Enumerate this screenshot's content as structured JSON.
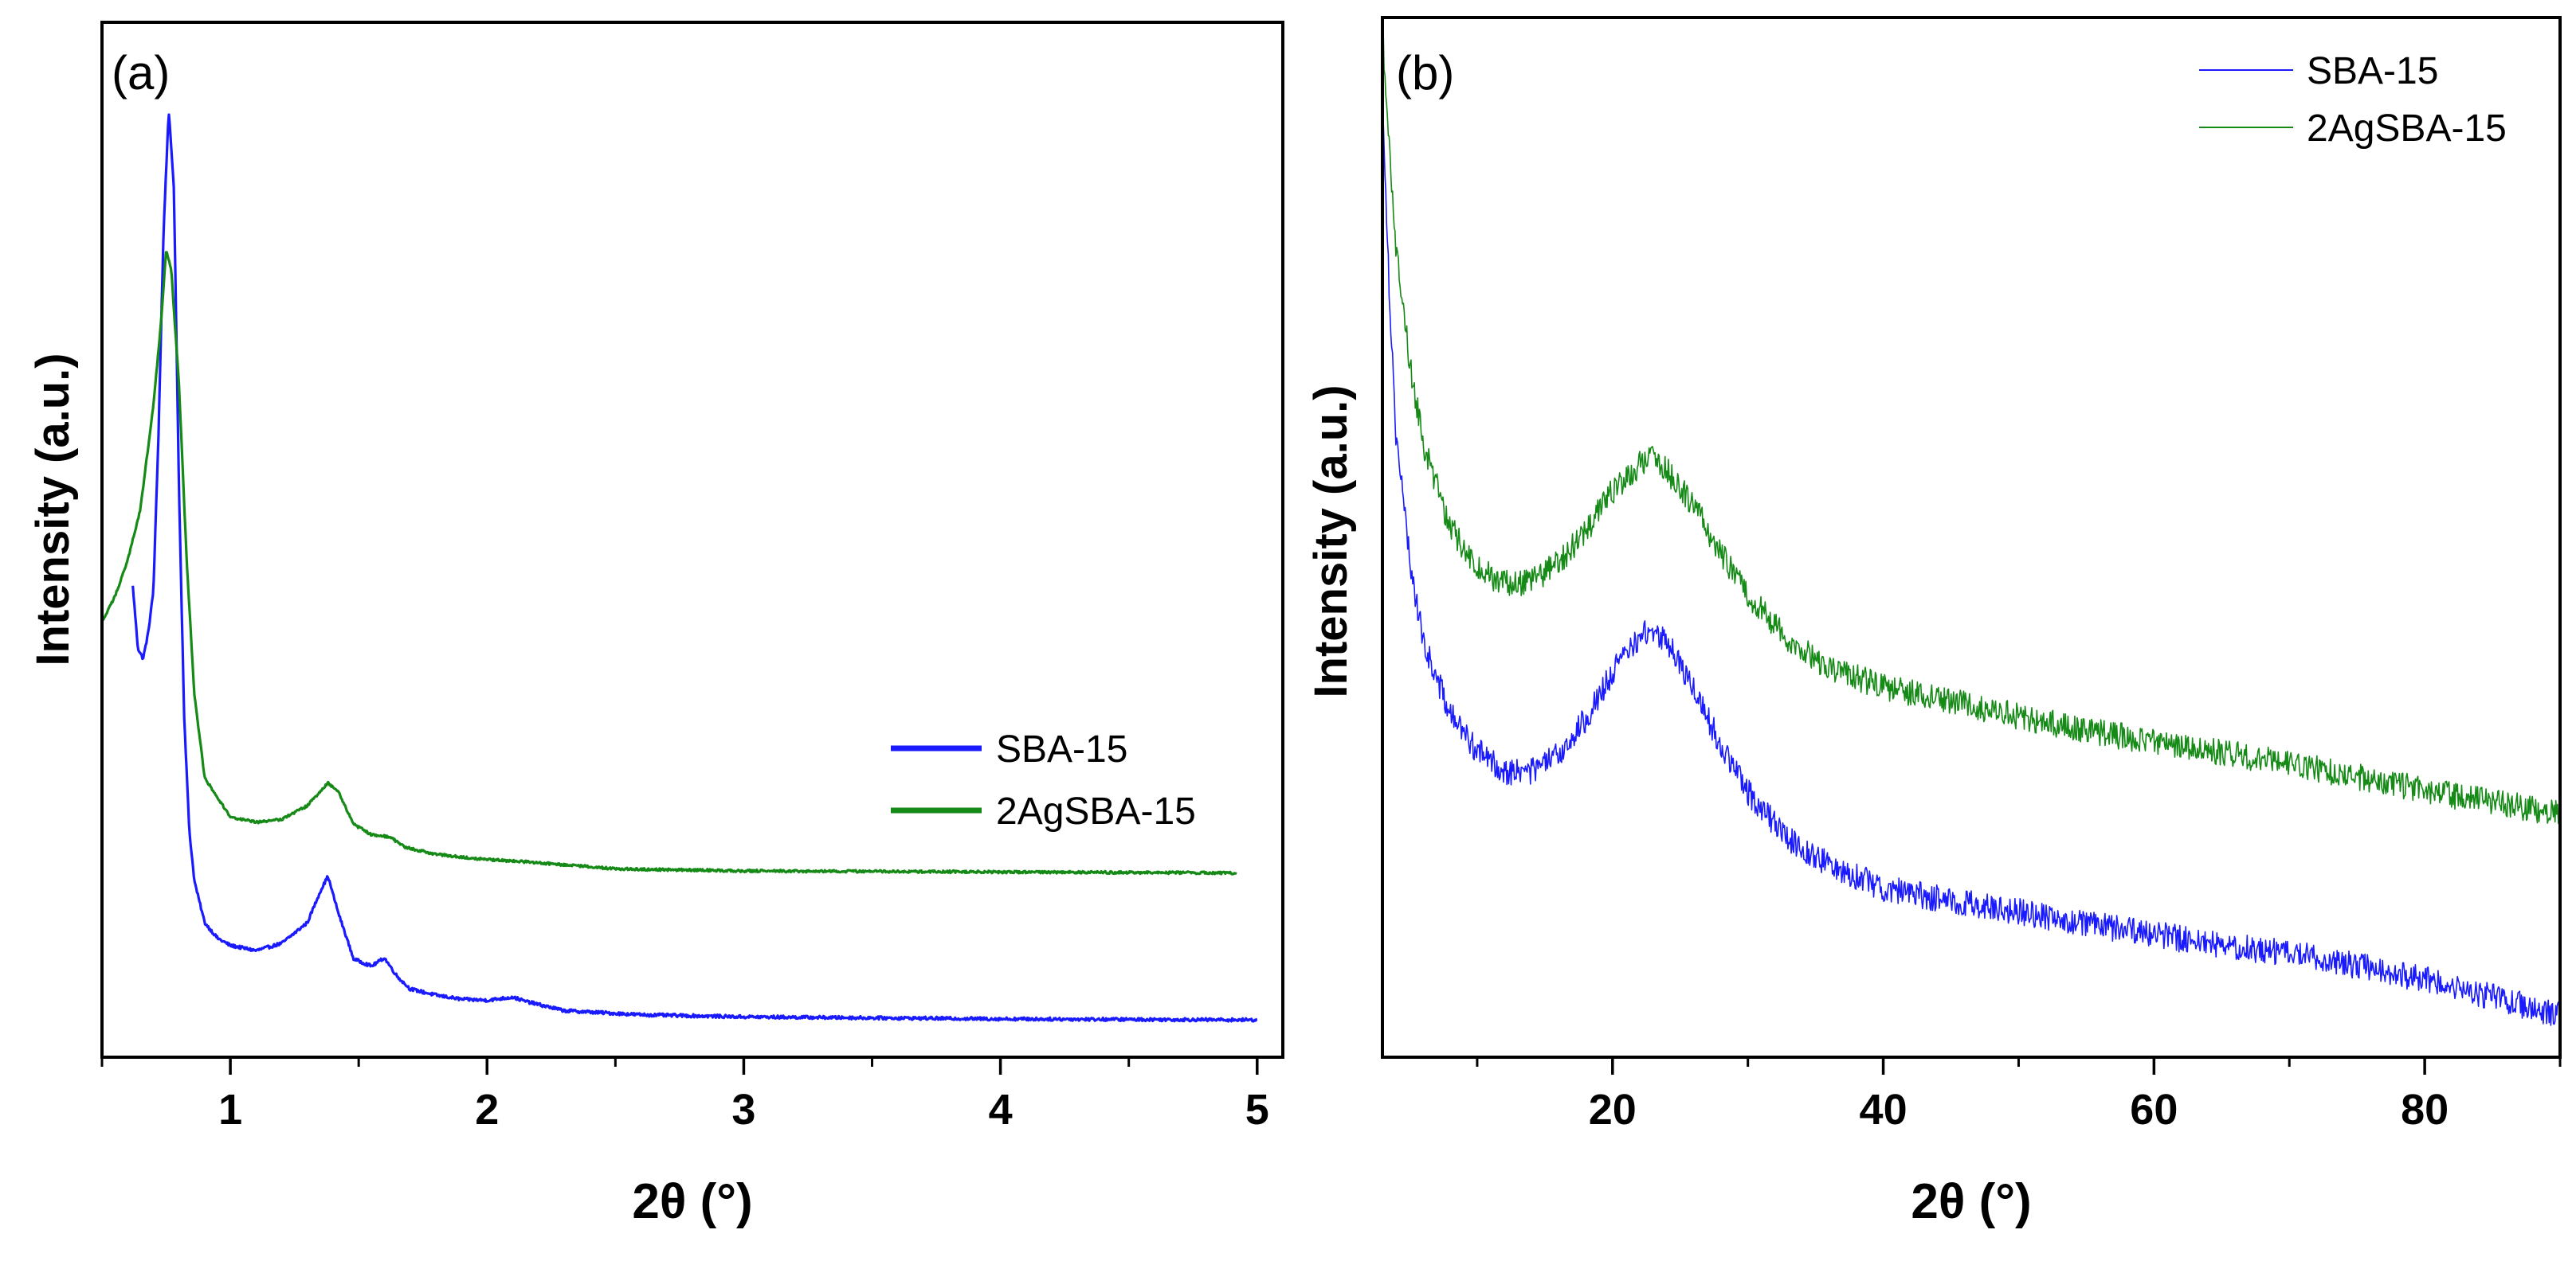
{
  "colors": {
    "sba15": "#1a1aff",
    "ag": "#168a16"
  },
  "chart_data": [
    {
      "type": "line",
      "panel_label": "(a)",
      "xlabel": "2θ (°)",
      "ylabel": "Intensity (a.u.)",
      "xlim": [
        0.5,
        5.1
      ],
      "ylim": [
        0,
        100
      ],
      "xticks": [
        1,
        2,
        3,
        4,
        5
      ],
      "x_minor_step": 0.5,
      "yticks": [],
      "legend_position": "center-right",
      "legend_lw": 7,
      "series": [
        {
          "name": "SBA-15",
          "color": "#1a1aff",
          "noise": 0.15,
          "points": [
            [
              0.62,
              45.5
            ],
            [
              0.64,
              39.5
            ],
            [
              0.66,
              38.5
            ],
            [
              0.68,
              41
            ],
            [
              0.7,
              45
            ],
            [
              0.72,
              60
            ],
            [
              0.74,
              80
            ],
            [
              0.76,
              91.5
            ],
            [
              0.78,
              84
            ],
            [
              0.8,
              55
            ],
            [
              0.82,
              33
            ],
            [
              0.84,
              22
            ],
            [
              0.86,
              17
            ],
            [
              0.9,
              13
            ],
            [
              0.95,
              11.5
            ],
            [
              1.0,
              10.8
            ],
            [
              1.1,
              10.3
            ],
            [
              1.2,
              11
            ],
            [
              1.3,
              13
            ],
            [
              1.35,
              16
            ],
            [
              1.38,
              17.5
            ],
            [
              1.42,
              14
            ],
            [
              1.48,
              9.5
            ],
            [
              1.55,
              8.8
            ],
            [
              1.6,
              9.6
            ],
            [
              1.65,
              7.8
            ],
            [
              1.7,
              6.6
            ],
            [
              1.8,
              6.0
            ],
            [
              1.9,
              5.6
            ],
            [
              2.0,
              5.5
            ],
            [
              2.1,
              5.8
            ],
            [
              2.15,
              5.4
            ],
            [
              2.3,
              4.5
            ],
            [
              2.6,
              4.1
            ],
            [
              3.0,
              3.9
            ],
            [
              4.0,
              3.7
            ],
            [
              5.0,
              3.6
            ]
          ]
        },
        {
          "name": "2AgSBA-15",
          "color": "#168a16",
          "noise": 0.12,
          "points": [
            [
              0.5,
              42
            ],
            [
              0.55,
              44.5
            ],
            [
              0.6,
              48
            ],
            [
              0.65,
              53
            ],
            [
              0.7,
              63
            ],
            [
              0.73,
              71
            ],
            [
              0.75,
              78
            ],
            [
              0.77,
              76
            ],
            [
              0.8,
              65
            ],
            [
              0.83,
              48
            ],
            [
              0.86,
              35
            ],
            [
              0.9,
              27
            ],
            [
              1.0,
              23.2
            ],
            [
              1.1,
              22.7
            ],
            [
              1.2,
              23
            ],
            [
              1.3,
              24.3
            ],
            [
              1.38,
              26.5
            ],
            [
              1.42,
              25.7
            ],
            [
              1.48,
              22.5
            ],
            [
              1.55,
              21.5
            ],
            [
              1.62,
              21.3
            ],
            [
              1.68,
              20.3
            ],
            [
              1.8,
              19.6
            ],
            [
              2.0,
              19.1
            ],
            [
              2.2,
              18.8
            ],
            [
              2.5,
              18.2
            ],
            [
              3.0,
              18.0
            ],
            [
              4.0,
              17.9
            ],
            [
              4.92,
              17.8
            ]
          ]
        }
      ]
    },
    {
      "type": "line",
      "panel_label": "(b)",
      "xlabel": "2θ (°)",
      "ylabel": "Intensity (a.u.)",
      "xlim": [
        3,
        90
      ],
      "ylim": [
        0,
        100
      ],
      "xticks": [
        20,
        40,
        60,
        80
      ],
      "x_minor_step": 10,
      "yticks": [],
      "legend_position": "top-right",
      "legend_lw": 2,
      "series": [
        {
          "name": "SBA-15",
          "color": "#1a1aff",
          "noise": 1.3,
          "points": [
            [
              3,
              93
            ],
            [
              3.5,
              74
            ],
            [
              4,
              60
            ],
            [
              5,
              48
            ],
            [
              6,
              40
            ],
            [
              8,
              33
            ],
            [
              10,
              29.5
            ],
            [
              12,
              27.5
            ],
            [
              14,
              27.5
            ],
            [
              16,
              29
            ],
            [
              18,
              32.5
            ],
            [
              20,
              37
            ],
            [
              22,
              40.5
            ],
            [
              23,
              41
            ],
            [
              24,
              40
            ],
            [
              26,
              35.5
            ],
            [
              28,
              30
            ],
            [
              30,
              25.5
            ],
            [
              33,
              21
            ],
            [
              36,
              18.5
            ],
            [
              40,
              16.3
            ],
            [
              45,
              15
            ],
            [
              50,
              14
            ],
            [
              55,
              12.8
            ],
            [
              60,
              11.8
            ],
            [
              65,
              10.8
            ],
            [
              70,
              10
            ],
            [
              75,
              8.8
            ],
            [
              80,
              7.5
            ],
            [
              85,
              5.8
            ],
            [
              90,
              4
            ]
          ]
        },
        {
          "name": "2AgSBA-15",
          "color": "#168a16",
          "noise": 1.3,
          "points": [
            [
              3,
              99
            ],
            [
              3.5,
              88
            ],
            [
              4,
              78
            ],
            [
              5,
              67
            ],
            [
              6,
              59
            ],
            [
              8,
              51
            ],
            [
              10,
              47
            ],
            [
              12,
              45.5
            ],
            [
              14,
              45.8
            ],
            [
              16,
              47.5
            ],
            [
              18,
              50.5
            ],
            [
              20,
              54.5
            ],
            [
              22,
              57
            ],
            [
              23,
              57.5
            ],
            [
              24,
              56.5
            ],
            [
              26,
              53
            ],
            [
              28,
              48.5
            ],
            [
              30,
              44.5
            ],
            [
              33,
              40
            ],
            [
              36,
              37.5
            ],
            [
              40,
              35.6
            ],
            [
              45,
              34.2
            ],
            [
              50,
              32.8
            ],
            [
              55,
              31.5
            ],
            [
              60,
              30.3
            ],
            [
              65,
              29.3
            ],
            [
              70,
              28.3
            ],
            [
              75,
              27
            ],
            [
              80,
              25.7
            ],
            [
              85,
              24.5
            ],
            [
              90,
              23.5
            ]
          ]
        }
      ]
    }
  ]
}
